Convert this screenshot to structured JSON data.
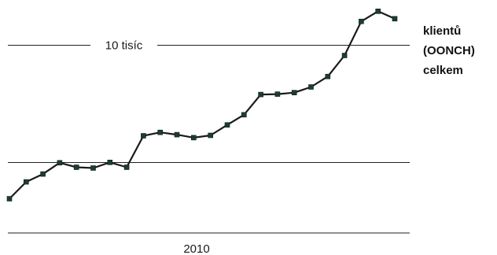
{
  "chart_data": {
    "type": "line",
    "title": "",
    "series_title_lines": [
      "klientů",
      "(OONCH)",
      "celkem"
    ],
    "xlabel": "",
    "ylabel": "",
    "y_tick_label": "10 tisíc",
    "x_tick_label": "2010",
    "series": [
      {
        "name": "klientů (OONCH) celkem",
        "values": [
          5900,
          6350,
          6560,
          6860,
          6740,
          6720,
          6870,
          6740,
          7580,
          7670,
          7610,
          7530,
          7590,
          7870,
          8140,
          8680,
          8690,
          8730,
          8880,
          9160,
          9720,
          10630,
          10900,
          10700
        ]
      }
    ],
    "ylim": [
      4400,
      11200
    ],
    "y_gridlines": [
      6875,
      10000
    ],
    "grid": false,
    "legend": "none",
    "colors": {
      "line": "#1a1a1a",
      "marker": "#1e3d32",
      "gridline": "#222222",
      "text": "#1a1a1a"
    }
  }
}
